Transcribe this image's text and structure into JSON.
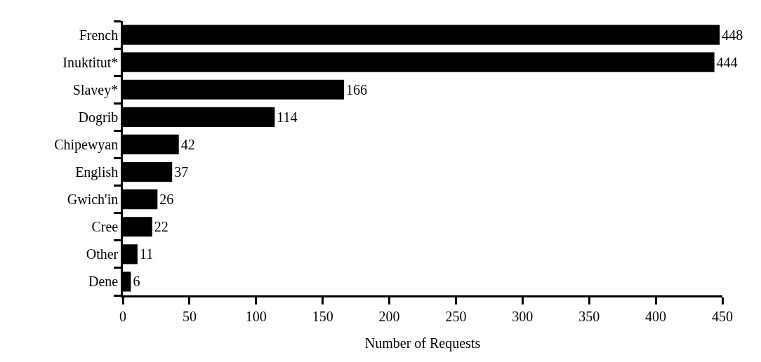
{
  "chart_data": {
    "type": "bar",
    "orientation": "horizontal",
    "categories": [
      "French",
      "Inuktitut*",
      "Slavey*",
      "Dogrib",
      "Chipewyan",
      "English",
      "Gwich'in",
      "Cree",
      "Other",
      "Dene"
    ],
    "values": [
      448,
      444,
      166,
      114,
      42,
      37,
      26,
      22,
      11,
      6
    ],
    "color": "#000000",
    "xlabel": "Number of Requests",
    "xlim": [
      0,
      450
    ],
    "xticks": [
      0,
      50,
      100,
      150,
      200,
      250,
      300,
      350,
      400,
      450
    ],
    "data_labels": true
  }
}
